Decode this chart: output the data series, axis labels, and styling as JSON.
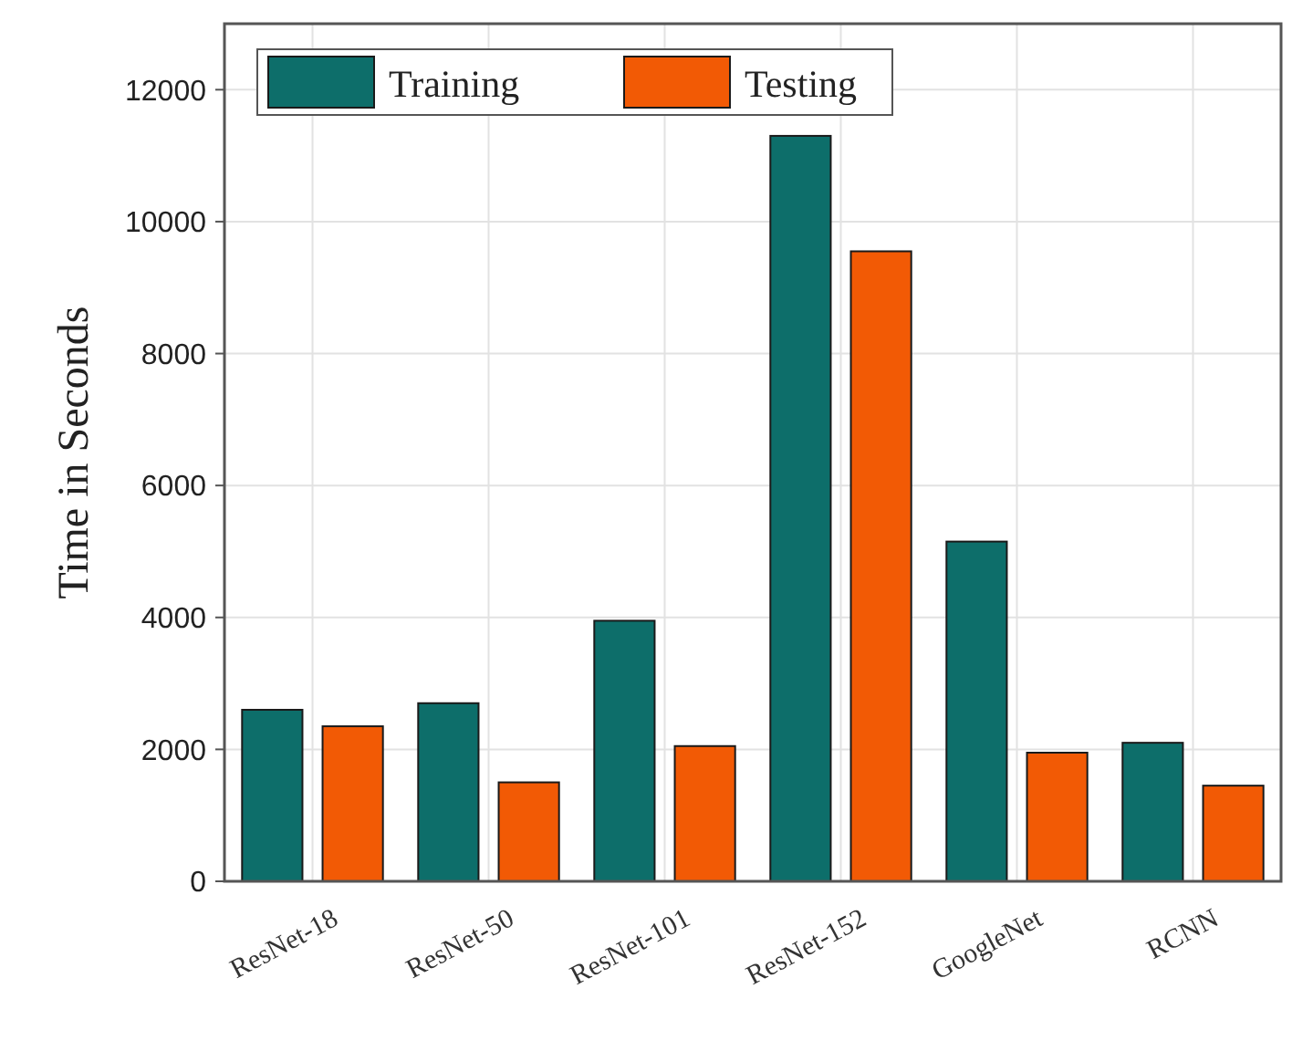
{
  "chart_data": {
    "type": "bar",
    "ylabel": "Time in Seconds",
    "categories": [
      "ResNet-18",
      "ResNet-50",
      "ResNet-101",
      "ResNet-152",
      "GoogleNet",
      "RCNN"
    ],
    "series": [
      {
        "name": "Training",
        "color": "#0d6e6a",
        "values": [
          2600,
          2700,
          3950,
          11300,
          5150,
          2100
        ]
      },
      {
        "name": "Testing",
        "color": "#f25a05",
        "values": [
          2350,
          1500,
          2050,
          9550,
          1950,
          1450
        ]
      }
    ],
    "ylim": [
      0,
      13000
    ],
    "yticks": [
      0,
      2000,
      4000,
      6000,
      8000,
      10000,
      12000
    ],
    "grid": true,
    "legend": "top left"
  }
}
